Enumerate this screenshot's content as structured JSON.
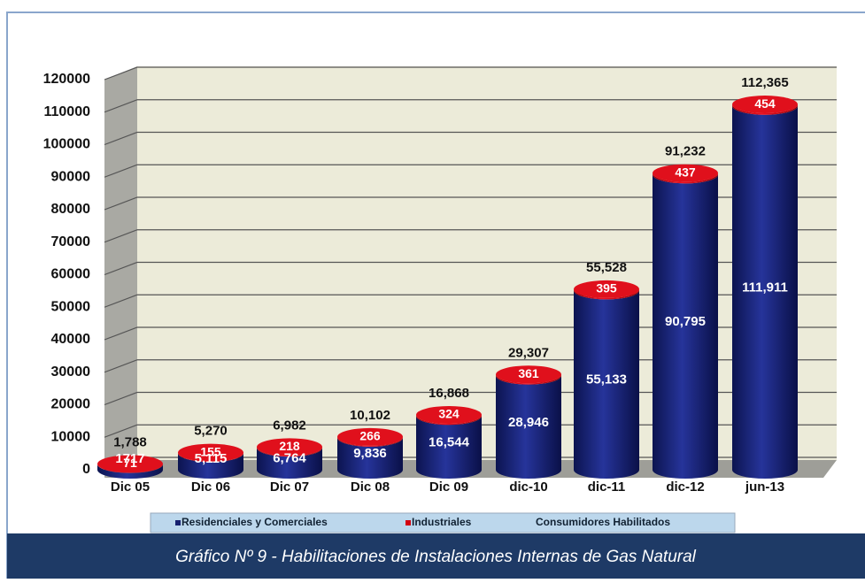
{
  "chart_data": {
    "type": "bar3d_stacked",
    "caption": "Gráfico Nº 9 -  Habilitaciones de Instalaciones Internas de Gas Natural",
    "categories": [
      "Dic 05",
      "Dic 06",
      "Dic 07",
      "Dic 08",
      "Dic 09",
      "dic-10",
      "dic-11",
      "dic-12",
      "jun-13"
    ],
    "series": [
      {
        "name": "Residenciales y Comerciales",
        "color": "#16206f",
        "values": [
          1717,
          5115,
          6764,
          9836,
          16544,
          28946,
          55133,
          90795,
          111911
        ],
        "value_labels": [
          "1717",
          "5,115",
          "6,764",
          "9,836",
          "16,544",
          "28,946",
          "55,133",
          "90,795",
          "111,911"
        ]
      },
      {
        "name": "Industriales",
        "color": "#d3000f",
        "values": [
          71,
          155,
          218,
          266,
          324,
          361,
          395,
          437,
          454
        ]
      },
      {
        "name": "Consumidores Habilitados",
        "values": [
          1788,
          5270,
          6982,
          10102,
          16868,
          29307,
          55528,
          91232,
          112365
        ],
        "value_labels": [
          "1,788",
          "5,270",
          "6,982",
          "10,102",
          "16,868",
          "29,307",
          "55,528",
          "91,232",
          "112,365"
        ]
      }
    ],
    "ylim": [
      0,
      120000
    ],
    "yticks": [
      0,
      10000,
      20000,
      30000,
      40000,
      50000,
      60000,
      70000,
      80000,
      90000,
      100000,
      110000,
      120000
    ],
    "grid": true
  }
}
